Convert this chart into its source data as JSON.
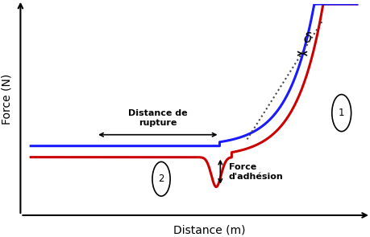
{
  "background_color": "#ffffff",
  "xlabel": "Distance (m)",
  "ylabel": "Force (N)",
  "curve_blue_color": "#1a1aff",
  "curve_red_color": "#cc0000",
  "dashed_line_color": "#444444",
  "figsize": [
    4.59,
    2.95
  ],
  "dpi": 100,
  "xlim": [
    0,
    10
  ],
  "ylim": [
    0,
    3.2
  ]
}
